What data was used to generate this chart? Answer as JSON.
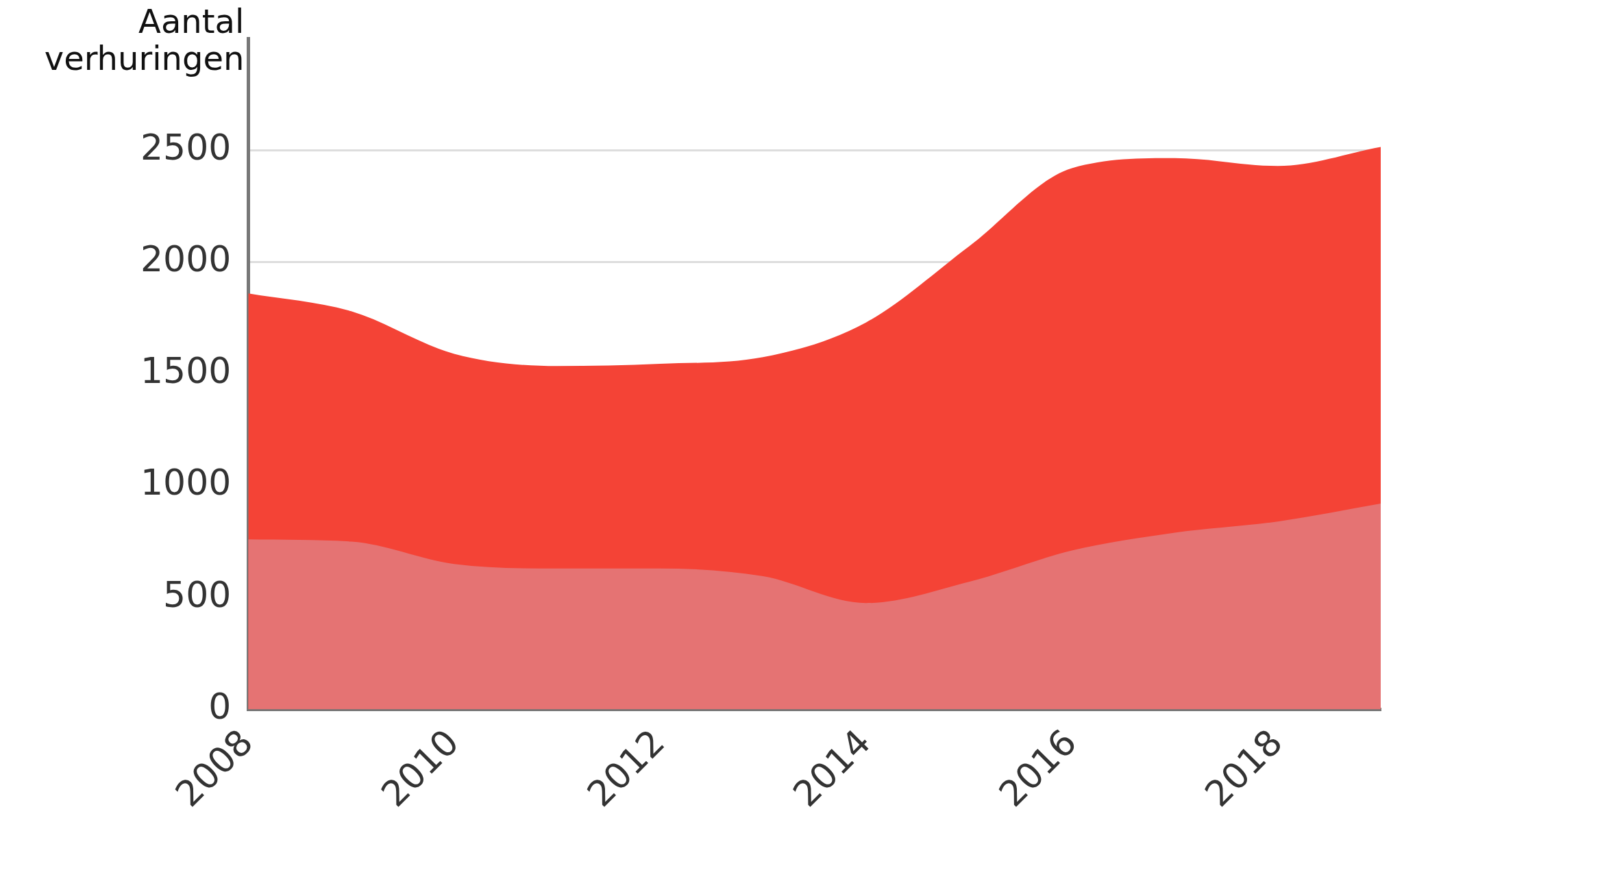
{
  "chart_data": {
    "type": "area",
    "ylabel": "Aantal\nverhuringen",
    "x": [
      2008,
      2009,
      2010,
      2011,
      2012,
      2013,
      2014,
      2015,
      2016,
      2017,
      2018,
      2019
    ],
    "series": [
      {
        "color": "#f44336",
        "values": [
          1860,
          1780,
          1590,
          1535,
          1545,
          1575,
          1730,
          2070,
          2420,
          2465,
          2430,
          2515
        ]
      },
      {
        "color": "#e57373",
        "values": [
          760,
          750,
          650,
          630,
          630,
          595,
          475,
          570,
          710,
          790,
          840,
          920
        ]
      }
    ],
    "xlim": [
      2008,
      2019
    ],
    "xticks": [
      2008,
      2010,
      2012,
      2014,
      2016,
      2018
    ],
    "ylim": [
      0,
      3000
    ],
    "yticks": [
      0,
      500,
      1000,
      1500,
      2000,
      2500
    ],
    "grid": "y",
    "legend": false
  }
}
